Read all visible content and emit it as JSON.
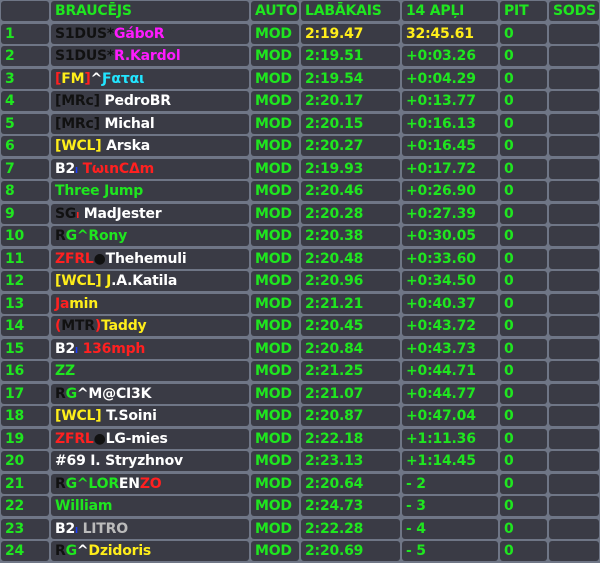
{
  "header": {
    "pos": "",
    "driver": "BRAUCĒJS",
    "car": "AUTO",
    "best": "LABĀKAIS",
    "laps": "14 APĻI",
    "pit": "PIT",
    "penalty": "SODS"
  },
  "colors": {
    "green": "#1fe61f",
    "yellow": "#ffee1a",
    "cell_bg": "#3a3b45",
    "grid": "#6f7686"
  },
  "rows": [
    {
      "pos": "1",
      "name": [
        {
          "t": "S1DUS*",
          "c": "#111111"
        },
        {
          "t": "GáboR",
          "c": "#ff1aff"
        }
      ],
      "car": "MOD",
      "best": "2:19.47",
      "laps": "32:45.61",
      "pit": "0",
      "penalty": "",
      "leader": true
    },
    {
      "pos": "2",
      "name": [
        {
          "t": "S1DUS*",
          "c": "#111111"
        },
        {
          "t": "R.Kardol",
          "c": "#ff1aff"
        }
      ],
      "car": "MOD",
      "best": "2:19.51",
      "laps": "+0:03.26",
      "pit": "0",
      "penalty": ""
    },
    {
      "pos": "3",
      "name": [
        {
          "t": "[",
          "c": "#ff2020"
        },
        {
          "t": "FM",
          "c": "#ffee1a"
        },
        {
          "t": "]",
          "c": "#ff2020"
        },
        {
          "t": "^",
          "c": "#ffffff"
        },
        {
          "t": "Ƒαται",
          "c": "#22e5ff"
        }
      ],
      "car": "MOD",
      "best": "2:19.54",
      "laps": "+0:04.29",
      "pit": "0",
      "penalty": ""
    },
    {
      "pos": "4",
      "name": [
        {
          "t": "[MRc]",
          "c": "#111111"
        },
        {
          "t": " PedroBR",
          "c": "#ffffff"
        }
      ],
      "car": "MOD",
      "best": "2:20.17",
      "laps": "+0:13.77",
      "pit": "0",
      "penalty": ""
    },
    {
      "pos": "5",
      "name": [
        {
          "t": "[MRc]",
          "c": "#111111"
        },
        {
          "t": " Michal",
          "c": "#ffffff"
        }
      ],
      "car": "MOD",
      "best": "2:20.15",
      "laps": "+0:16.13",
      "pit": "0",
      "penalty": ""
    },
    {
      "pos": "6",
      "name": [
        {
          "t": "[WCL]",
          "c": "#ffee1a"
        },
        {
          "t": " Arska",
          "c": "#ffffff"
        }
      ],
      "car": "MOD",
      "best": "2:20.27",
      "laps": "+0:16.45",
      "pit": "0",
      "penalty": ""
    },
    {
      "pos": "7",
      "name": [
        {
          "t": "B2",
          "c": "#ffffff"
        },
        {
          "t": "ₗ",
          "c": "#1a3aff"
        },
        {
          "t": " TωιnCΔm",
          "c": "#ff2020"
        }
      ],
      "car": "MOD",
      "best": "2:19.93",
      "laps": "+0:17.72",
      "pit": "0",
      "penalty": ""
    },
    {
      "pos": "8",
      "name": [
        {
          "t": "Three Jump",
          "c": "#1fe61f"
        }
      ],
      "car": "MOD",
      "best": "2:20.46",
      "laps": "+0:26.90",
      "pit": "0",
      "penalty": ""
    },
    {
      "pos": "9",
      "name": [
        {
          "t": "SG",
          "c": "#111111"
        },
        {
          "t": "ₗ",
          "c": "#ff2020"
        },
        {
          "t": " MadJester",
          "c": "#ffffff"
        }
      ],
      "car": "MOD",
      "best": "2:20.28",
      "laps": "+0:27.39",
      "pit": "0",
      "penalty": ""
    },
    {
      "pos": "10",
      "name": [
        {
          "t": "R",
          "c": "#111111"
        },
        {
          "t": "G^Rony",
          "c": "#1fe61f"
        }
      ],
      "car": "MOD",
      "best": "2:20.38",
      "laps": "+0:30.05",
      "pit": "0",
      "penalty": ""
    },
    {
      "pos": "11",
      "name": [
        {
          "t": "ZFRL",
          "c": "#ff2020"
        },
        {
          "t": "●",
          "c": "#111111"
        },
        {
          "t": "Thehemuli",
          "c": "#ffffff"
        }
      ],
      "car": "MOD",
      "best": "2:20.48",
      "laps": "+0:33.60",
      "pit": "0",
      "penalty": ""
    },
    {
      "pos": "12",
      "name": [
        {
          "t": "[WCL] J",
          "c": "#ffee1a"
        },
        {
          "t": ".A.Katila",
          "c": "#ffffff"
        }
      ],
      "car": "MOD",
      "best": "2:20.96",
      "laps": "+0:34.50",
      "pit": "0",
      "penalty": ""
    },
    {
      "pos": "13",
      "name": [
        {
          "t": "Ja",
          "c": "#ff2020"
        },
        {
          "t": "min",
          "c": "#ffee1a"
        }
      ],
      "car": "MOD",
      "best": "2:21.21",
      "laps": "+0:40.37",
      "pit": "0",
      "penalty": ""
    },
    {
      "pos": "14",
      "name": [
        {
          "t": "(",
          "c": "#ff2020"
        },
        {
          "t": "MTR",
          "c": "#111111"
        },
        {
          "t": ")",
          "c": "#ff2020"
        },
        {
          "t": "Taddy",
          "c": "#ffee1a"
        }
      ],
      "car": "MOD",
      "best": "2:20.45",
      "laps": "+0:43.72",
      "pit": "0",
      "penalty": ""
    },
    {
      "pos": "15",
      "name": [
        {
          "t": "B2",
          "c": "#ffffff"
        },
        {
          "t": "ₗ",
          "c": "#1a3aff"
        },
        {
          "t": " 136mph",
          "c": "#ff2020"
        }
      ],
      "car": "MOD",
      "best": "2:20.84",
      "laps": "+0:43.73",
      "pit": "0",
      "penalty": ""
    },
    {
      "pos": "16",
      "name": [
        {
          "t": "ZZ",
          "c": "#1fe61f"
        }
      ],
      "car": "MOD",
      "best": "2:21.25",
      "laps": "+0:44.71",
      "pit": "0",
      "penalty": ""
    },
    {
      "pos": "17",
      "name": [
        {
          "t": "R",
          "c": "#111111"
        },
        {
          "t": "G",
          "c": "#1fe61f"
        },
        {
          "t": "^M@CI3K",
          "c": "#ffffff"
        }
      ],
      "car": "MOD",
      "best": "2:21.07",
      "laps": "+0:44.77",
      "pit": "0",
      "penalty": ""
    },
    {
      "pos": "18",
      "name": [
        {
          "t": "[WCL]",
          "c": "#ffee1a"
        },
        {
          "t": " T.Soini",
          "c": "#ffffff"
        }
      ],
      "car": "MOD",
      "best": "2:20.87",
      "laps": "+0:47.04",
      "pit": "0",
      "penalty": ""
    },
    {
      "pos": "19",
      "name": [
        {
          "t": "ZFRL",
          "c": "#ff2020"
        },
        {
          "t": "●",
          "c": "#111111"
        },
        {
          "t": "LG-mies",
          "c": "#ffffff"
        }
      ],
      "car": "MOD",
      "best": "2:22.18",
      "laps": "+1:11.36",
      "pit": "0",
      "penalty": ""
    },
    {
      "pos": "20",
      "name": [
        {
          "t": "#69 I. Stryzhnov",
          "c": "#ffffff"
        }
      ],
      "car": "MOD",
      "best": "2:23.13",
      "laps": "+1:14.45",
      "pit": "0",
      "penalty": ""
    },
    {
      "pos": "21",
      "name": [
        {
          "t": "R",
          "c": "#111111"
        },
        {
          "t": "G^LOR",
          "c": "#1fe61f"
        },
        {
          "t": "EN",
          "c": "#ffffff"
        },
        {
          "t": "ZO",
          "c": "#ff2020"
        }
      ],
      "car": "MOD",
      "best": "2:20.64",
      "laps": "- 2",
      "pit": "0",
      "penalty": ""
    },
    {
      "pos": "22",
      "name": [
        {
          "t": "William",
          "c": "#1fe61f"
        }
      ],
      "car": "MOD",
      "best": "2:24.73",
      "laps": "- 3",
      "pit": "0",
      "penalty": ""
    },
    {
      "pos": "23",
      "name": [
        {
          "t": "B2",
          "c": "#ffffff"
        },
        {
          "t": "ₗ",
          "c": "#1a3aff"
        },
        {
          "t": " LITRO",
          "c": "#bbbbbb"
        }
      ],
      "car": "MOD",
      "best": "2:22.28",
      "laps": "- 4",
      "pit": "0",
      "penalty": ""
    },
    {
      "pos": "24",
      "name": [
        {
          "t": "R",
          "c": "#111111"
        },
        {
          "t": "G",
          "c": "#1fe61f"
        },
        {
          "t": "^",
          "c": "#ffffff"
        },
        {
          "t": "Dzidoris",
          "c": "#ffee1a"
        }
      ],
      "car": "MOD",
      "best": "2:20.69",
      "laps": "- 5",
      "pit": "0",
      "penalty": ""
    }
  ]
}
